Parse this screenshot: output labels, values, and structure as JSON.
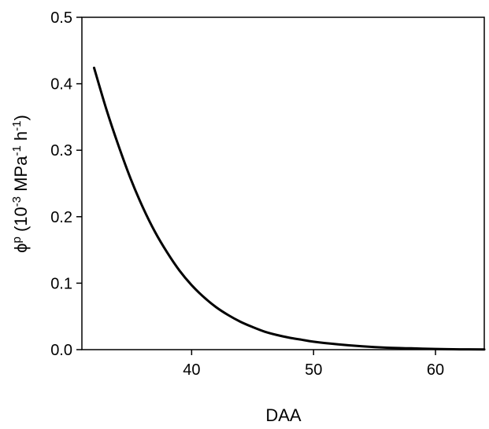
{
  "chart_data": {
    "type": "line",
    "title": "",
    "xlabel": "DAA",
    "ylabel": {
      "parts": [
        {
          "text": "ϕ",
          "sup": false
        },
        {
          "text": "p",
          "sup": true
        },
        {
          "text": " (10",
          "sup": false
        },
        {
          "text": "-3",
          "sup": true
        },
        {
          "text": " MPa",
          "sup": false
        },
        {
          "text": "-1",
          "sup": true
        },
        {
          "text": " h",
          "sup": false
        },
        {
          "text": "-1",
          "sup": true
        },
        {
          "text": ")",
          "sup": false
        }
      ]
    },
    "xlim": [
      31,
      64
    ],
    "ylim": [
      0.0,
      0.5
    ],
    "xticks": [
      40,
      50,
      60
    ],
    "xtick_labels": [
      "40",
      "50",
      "60"
    ],
    "yticks": [
      0.0,
      0.1,
      0.2,
      0.3,
      0.4,
      0.5
    ],
    "ytick_labels": [
      "0.0",
      "0.1",
      "0.2",
      "0.3",
      "0.4",
      "0.5"
    ],
    "grid": false,
    "legend": "none",
    "series": [
      {
        "x": [
          32,
          33,
          34,
          35,
          36,
          37,
          38,
          39,
          40,
          41,
          42,
          43,
          44,
          45,
          46,
          47,
          48,
          49,
          50,
          52,
          54,
          56,
          58,
          60,
          62,
          64
        ],
        "y": [
          0.424,
          0.362,
          0.307,
          0.257,
          0.214,
          0.177,
          0.146,
          0.119,
          0.097,
          0.079,
          0.064,
          0.052,
          0.042,
          0.034,
          0.027,
          0.022,
          0.018,
          0.015,
          0.012,
          0.008,
          0.005,
          0.003,
          0.002,
          0.001,
          0.0005,
          0.0003
        ],
        "color": "#000000"
      }
    ]
  }
}
